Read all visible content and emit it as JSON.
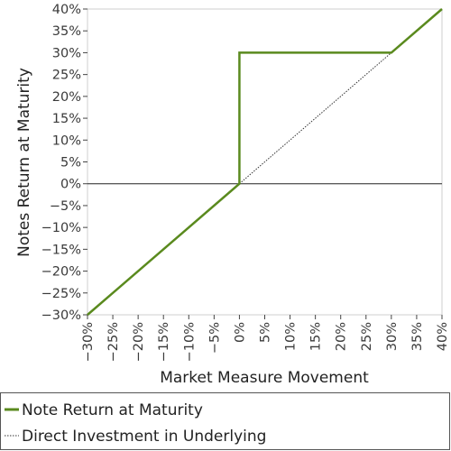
{
  "chart_data": {
    "type": "line",
    "xlabel": "Market Measure Movement",
    "ylabel": "Notes Return at Maturity",
    "xlim": [
      -30,
      40
    ],
    "ylim": [
      -30,
      40
    ],
    "x_ticks": [
      -30,
      -25,
      -20,
      -15,
      -10,
      -5,
      0,
      5,
      10,
      15,
      20,
      25,
      30,
      35,
      40
    ],
    "y_ticks": [
      -30,
      -25,
      -20,
      -15,
      -10,
      -5,
      0,
      5,
      10,
      15,
      20,
      25,
      30,
      35,
      40
    ],
    "x_tick_labels": [
      "−30%",
      "−25%",
      "−20%",
      "−15%",
      "−10%",
      "−5%",
      "0%",
      "5%",
      "10%",
      "15%",
      "20%",
      "25%",
      "30%",
      "35%",
      "40%"
    ],
    "y_tick_labels": [
      "−30%",
      "−25%",
      "−20%",
      "−15%",
      "−10%",
      "−5%",
      "0%",
      "5%",
      "10%",
      "15%",
      "20%",
      "25%",
      "30%",
      "35%",
      "40%"
    ],
    "grid": false,
    "legend_position": "bottom",
    "series": [
      {
        "name": "Note Return at Maturity",
        "color": "#5a8a1e",
        "style": "solid",
        "points": [
          [
            -30,
            -30
          ],
          [
            0,
            0
          ],
          [
            0,
            30
          ],
          [
            30,
            30
          ],
          [
            40,
            40
          ]
        ]
      },
      {
        "name": "Direct Investment in Underlying",
        "color": "#333333",
        "style": "dotted",
        "points": [
          [
            0,
            0
          ],
          [
            30,
            30
          ]
        ]
      }
    ]
  }
}
